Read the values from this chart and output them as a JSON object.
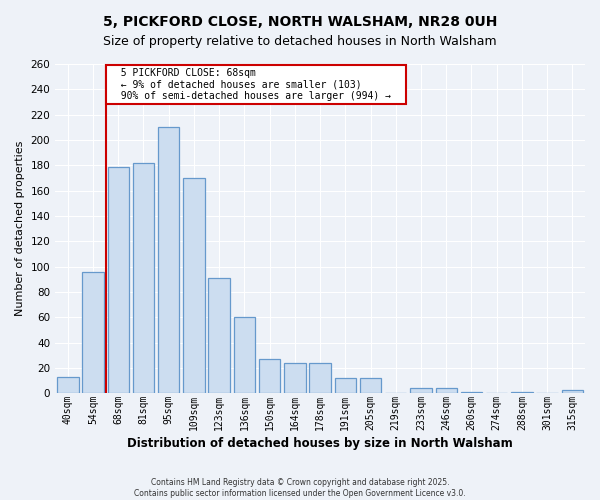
{
  "title": "5, PICKFORD CLOSE, NORTH WALSHAM, NR28 0UH",
  "subtitle": "Size of property relative to detached houses in North Walsham",
  "xlabel": "Distribution of detached houses by size in North Walsham",
  "ylabel": "Number of detached properties",
  "bar_categories": [
    "40sqm",
    "54sqm",
    "68sqm",
    "81sqm",
    "95sqm",
    "109sqm",
    "123sqm",
    "136sqm",
    "150sqm",
    "164sqm",
    "178sqm",
    "191sqm",
    "205sqm",
    "219sqm",
    "233sqm",
    "246sqm",
    "260sqm",
    "274sqm",
    "288sqm",
    "301sqm",
    "315sqm"
  ],
  "bar_values": [
    13,
    96,
    179,
    182,
    210,
    170,
    91,
    60,
    27,
    24,
    24,
    12,
    12,
    0,
    4,
    4,
    1,
    0,
    1,
    0,
    3
  ],
  "bar_color": "#ccddf0",
  "bar_edge_color": "#6699cc",
  "vline_x_index": 2,
  "vline_color": "#cc0000",
  "annotation_title": "5 PICKFORD CLOSE: 68sqm",
  "annotation_line1": "← 9% of detached houses are smaller (103)",
  "annotation_line2": "90% of semi-detached houses are larger (994) →",
  "annotation_box_facecolor": "#ffffff",
  "annotation_box_edgecolor": "#cc0000",
  "ylim": [
    0,
    260
  ],
  "yticks": [
    0,
    20,
    40,
    60,
    80,
    100,
    120,
    140,
    160,
    180,
    200,
    220,
    240,
    260
  ],
  "footer1": "Contains HM Land Registry data © Crown copyright and database right 2025.",
  "footer2": "Contains public sector information licensed under the Open Government Licence v3.0.",
  "bg_color": "#eef2f8",
  "grid_color": "#ffffff",
  "title_fontsize": 10,
  "subtitle_fontsize": 9
}
